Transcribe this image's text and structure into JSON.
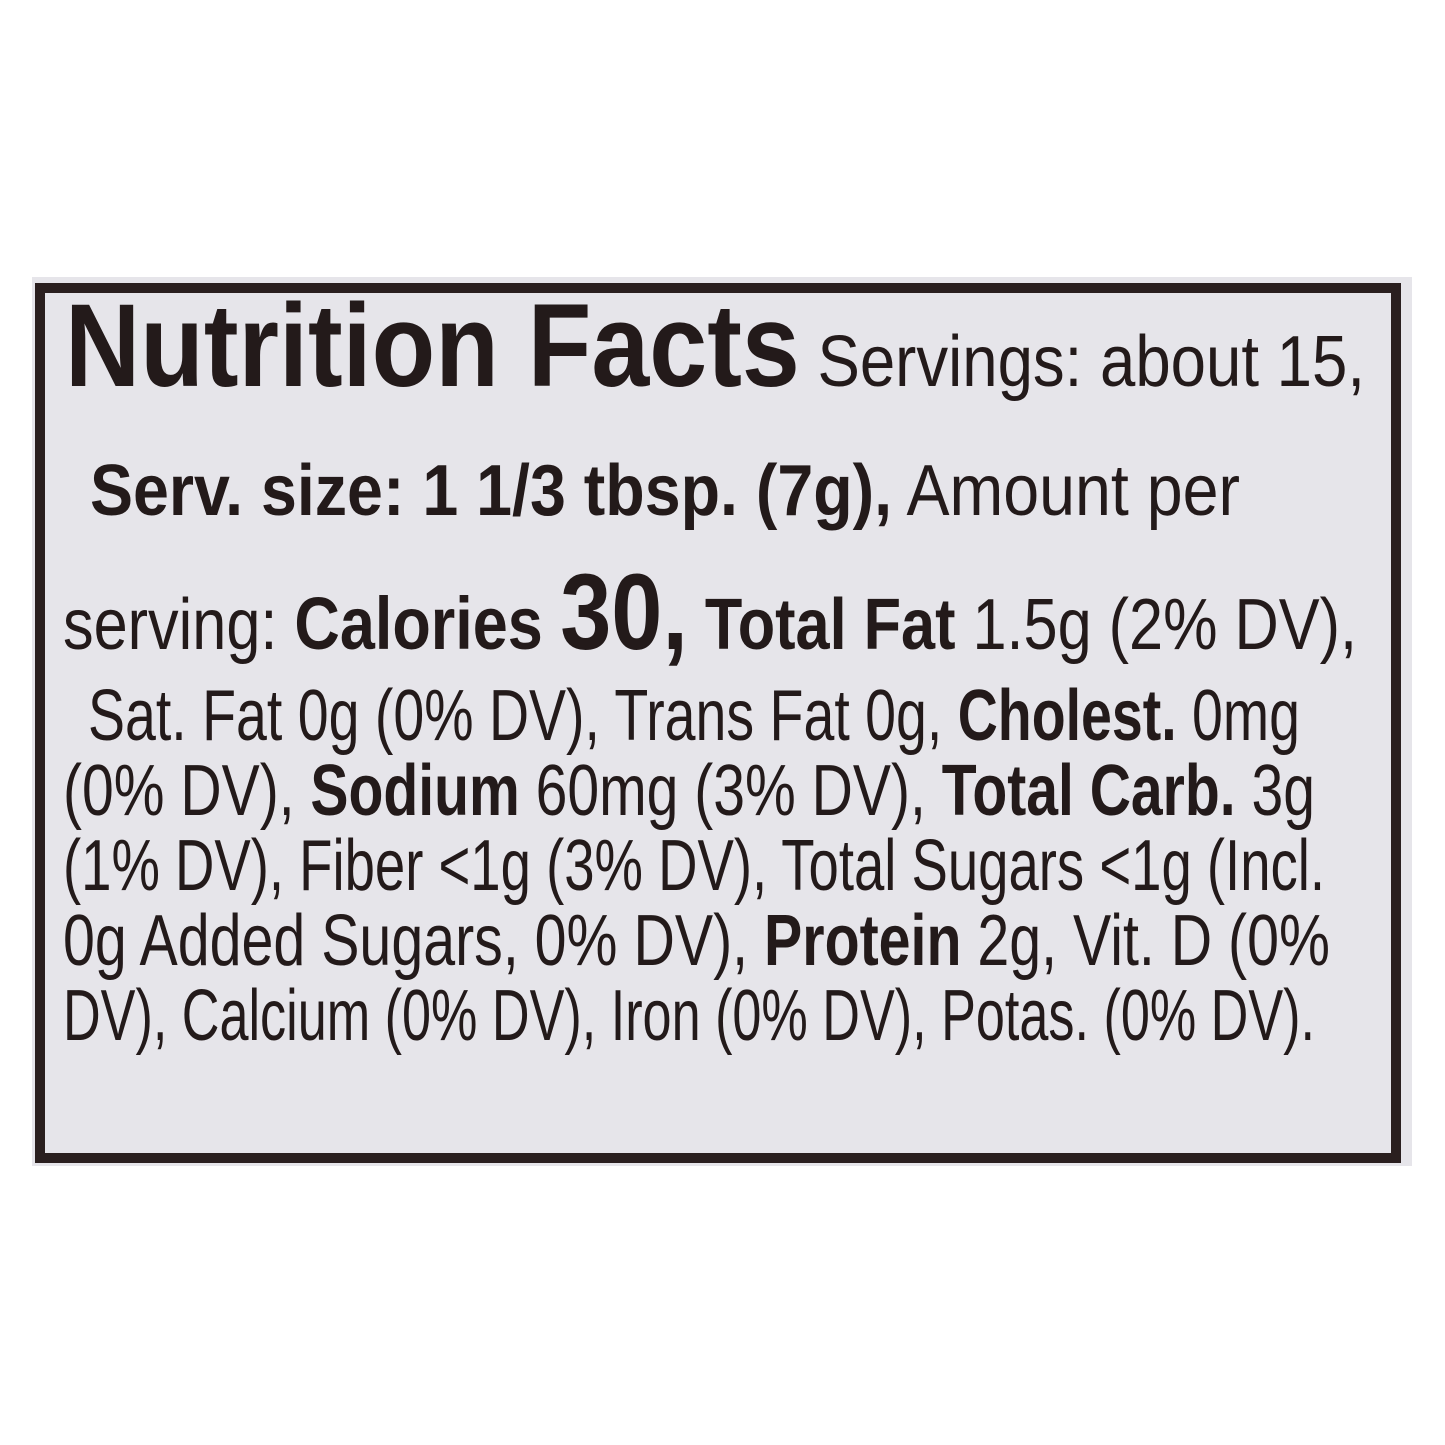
{
  "label": {
    "lines": [
      [
        {
          "t": "Nutrition Facts",
          "b": true,
          "big": "title"
        },
        {
          "t": " Servings: about 15,",
          "b": false
        }
      ],
      [
        {
          "t": "Serv. size: 1 1/3 tbsp. (7g),",
          "b": true
        },
        {
          "t": " Amount per",
          "b": false
        }
      ],
      [
        {
          "t": "serving: ",
          "b": false
        },
        {
          "t": "Calories ",
          "b": true,
          "big": "cal"
        },
        {
          "t": "30,",
          "b": true,
          "big": "num"
        },
        {
          "t": " Total Fat",
          "b": true
        },
        {
          "t": " 1.5g (2% DV),",
          "b": false
        }
      ],
      [
        {
          "t": "Sat. Fat 0g (0% DV), Trans Fat 0g, ",
          "b": false
        },
        {
          "t": "Cholest.",
          "b": true
        },
        {
          "t": " 0mg",
          "b": false
        }
      ],
      [
        {
          "t": "(0% DV), ",
          "b": false
        },
        {
          "t": "Sodium",
          "b": true
        },
        {
          "t": " 60mg (3% DV), ",
          "b": false
        },
        {
          "t": "Total Carb.",
          "b": true
        },
        {
          "t": " 3g",
          "b": false
        }
      ],
      [
        {
          "t": "(1% DV), Fiber <1g (3% DV), Total Sugars <1g (Incl.",
          "b": false
        }
      ],
      [
        {
          "t": "0g Added Sugars, 0% DV), ",
          "b": false
        },
        {
          "t": "Protein",
          "b": true
        },
        {
          "t": " 2g, Vit. D (0%",
          "b": false
        }
      ],
      [
        {
          "t": "DV), Calcium (0% DV), Iron (0% DV), Potas. (0% DV).",
          "b": false
        }
      ]
    ]
  }
}
